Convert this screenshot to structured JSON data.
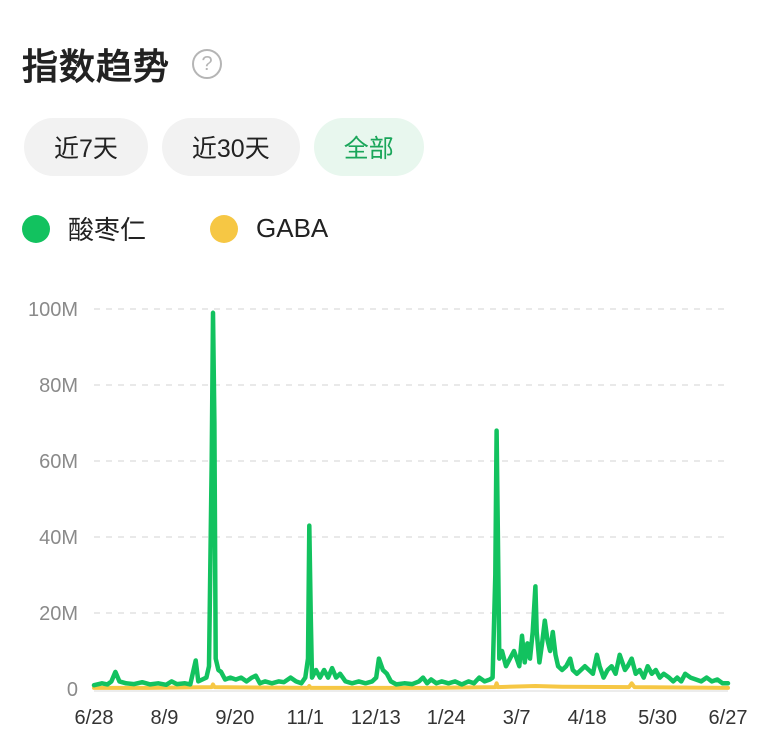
{
  "header": {
    "title": "指数趋势",
    "help_icon": "question-circle-icon"
  },
  "tabs": [
    {
      "label": "近7天",
      "active": false
    },
    {
      "label": "近30天",
      "active": false
    },
    {
      "label": "全部",
      "active": true
    }
  ],
  "colors": {
    "green": "#12c25f",
    "yellow": "#f6c744",
    "active_tab_text": "#1aa65a"
  },
  "chart_data": {
    "type": "line",
    "ylim": [
      0,
      100
    ],
    "y_unit": "M",
    "y_ticks": [
      "0",
      "20M",
      "40M",
      "60M",
      "80M",
      "100M"
    ],
    "x_ticks": [
      "6/28",
      "8/9",
      "9/20",
      "11/1",
      "12/13",
      "1/24",
      "3/7",
      "4/18",
      "5/30",
      "6/27"
    ],
    "grid": "horizontal dashed",
    "legend_position": "top-left",
    "series": [
      {
        "name": "酸枣仁",
        "color": "#12c25f",
        "points": [
          [
            0,
            1
          ],
          [
            6,
            1.5
          ],
          [
            10,
            1.2
          ],
          [
            13,
            2
          ],
          [
            16,
            4.5
          ],
          [
            19,
            2
          ],
          [
            24,
            1.5
          ],
          [
            30,
            1.3
          ],
          [
            36,
            1.8
          ],
          [
            42,
            1.2
          ],
          [
            48,
            1.5
          ],
          [
            54,
            1.1
          ],
          [
            58,
            2
          ],
          [
            62,
            1.3
          ],
          [
            68,
            1.5
          ],
          [
            72,
            1.2
          ],
          [
            76,
            7.5
          ],
          [
            78,
            2
          ],
          [
            81,
            2.5
          ],
          [
            84,
            3
          ],
          [
            86,
            6
          ],
          [
            88,
            60
          ],
          [
            89,
            99
          ],
          [
            90,
            70
          ],
          [
            91,
            8
          ],
          [
            93,
            5
          ],
          [
            95,
            4.5
          ],
          [
            98,
            2.5
          ],
          [
            102,
            3
          ],
          [
            106,
            2.5
          ],
          [
            110,
            3
          ],
          [
            114,
            2
          ],
          [
            118,
            3
          ],
          [
            121,
            3.5
          ],
          [
            124,
            1.5
          ],
          [
            128,
            2
          ],
          [
            133,
            1.5
          ],
          [
            138,
            2
          ],
          [
            142,
            1.8
          ],
          [
            147,
            3
          ],
          [
            151,
            2
          ],
          [
            155,
            1.5
          ],
          [
            158,
            3
          ],
          [
            160,
            8
          ],
          [
            161,
            43
          ],
          [
            162,
            20
          ],
          [
            163,
            3
          ],
          [
            166,
            5
          ],
          [
            169,
            3
          ],
          [
            172,
            5
          ],
          [
            175,
            3
          ],
          [
            178,
            5.5
          ],
          [
            181,
            3
          ],
          [
            184,
            4
          ],
          [
            188,
            2
          ],
          [
            193,
            1.5
          ],
          [
            198,
            2
          ],
          [
            203,
            1.5
          ],
          [
            208,
            2
          ],
          [
            211,
            3
          ],
          [
            213,
            8
          ],
          [
            216,
            5
          ],
          [
            219,
            4
          ],
          [
            222,
            2
          ],
          [
            226,
            1.2
          ],
          [
            232,
            1.5
          ],
          [
            238,
            1.3
          ],
          [
            243,
            2
          ],
          [
            246,
            3
          ],
          [
            249,
            1.5
          ],
          [
            252,
            2.5
          ],
          [
            256,
            1.5
          ],
          [
            260,
            2
          ],
          [
            265,
            1.5
          ],
          [
            270,
            2
          ],
          [
            275,
            1.2
          ],
          [
            280,
            2
          ],
          [
            284,
            1.5
          ],
          [
            288,
            3
          ],
          [
            292,
            2
          ],
          [
            296,
            2.5
          ],
          [
            298,
            3
          ],
          [
            300,
            30
          ],
          [
            301,
            68
          ],
          [
            302,
            40
          ],
          [
            303,
            8
          ],
          [
            305,
            10
          ],
          [
            308,
            6
          ],
          [
            311,
            8
          ],
          [
            314,
            10
          ],
          [
            316,
            8
          ],
          [
            318,
            6
          ],
          [
            320,
            14
          ],
          [
            322,
            7
          ],
          [
            324,
            12
          ],
          [
            326,
            8
          ],
          [
            328,
            15
          ],
          [
            330,
            27
          ],
          [
            331,
            15
          ],
          [
            333,
            7
          ],
          [
            335,
            12
          ],
          [
            337,
            18
          ],
          [
            339,
            13
          ],
          [
            341,
            10
          ],
          [
            343,
            15
          ],
          [
            345,
            9
          ],
          [
            347,
            6
          ],
          [
            350,
            5
          ],
          [
            353,
            6
          ],
          [
            356,
            8
          ],
          [
            358,
            5
          ],
          [
            361,
            4
          ],
          [
            364,
            5
          ],
          [
            367,
            6
          ],
          [
            370,
            5
          ],
          [
            373,
            4
          ],
          [
            376,
            9
          ],
          [
            378,
            6
          ],
          [
            381,
            3
          ],
          [
            384,
            5
          ],
          [
            387,
            6
          ],
          [
            390,
            4
          ],
          [
            393,
            9
          ],
          [
            395,
            7
          ],
          [
            397,
            5
          ],
          [
            399,
            6
          ],
          [
            402,
            8
          ],
          [
            405,
            4
          ],
          [
            408,
            5
          ],
          [
            411,
            3
          ],
          [
            414,
            6
          ],
          [
            417,
            4
          ],
          [
            420,
            5
          ],
          [
            423,
            3
          ],
          [
            426,
            4
          ],
          [
            430,
            3
          ],
          [
            433,
            2
          ],
          [
            436,
            3
          ],
          [
            439,
            2
          ],
          [
            442,
            4
          ],
          [
            446,
            3
          ],
          [
            450,
            2.5
          ],
          [
            454,
            2
          ],
          [
            458,
            3
          ],
          [
            462,
            2
          ],
          [
            466,
            2.5
          ],
          [
            470,
            1.5
          ],
          [
            474,
            1.5
          ]
        ]
      },
      {
        "name": "GABA",
        "color": "#f6c744",
        "points": [
          [
            0,
            0.3
          ],
          [
            40,
            0.3
          ],
          [
            88,
            0.5
          ],
          [
            89,
            1.2
          ],
          [
            90,
            0.5
          ],
          [
            160,
            0.3
          ],
          [
            161,
            0.8
          ],
          [
            162,
            0.3
          ],
          [
            250,
            0.3
          ],
          [
            300,
            0.5
          ],
          [
            301,
            1.5
          ],
          [
            302,
            0.5
          ],
          [
            330,
            0.8
          ],
          [
            350,
            0.6
          ],
          [
            400,
            0.5
          ],
          [
            402,
            1.5
          ],
          [
            404,
            0.5
          ],
          [
            440,
            0.4
          ],
          [
            474,
            0.3
          ]
        ]
      }
    ]
  }
}
